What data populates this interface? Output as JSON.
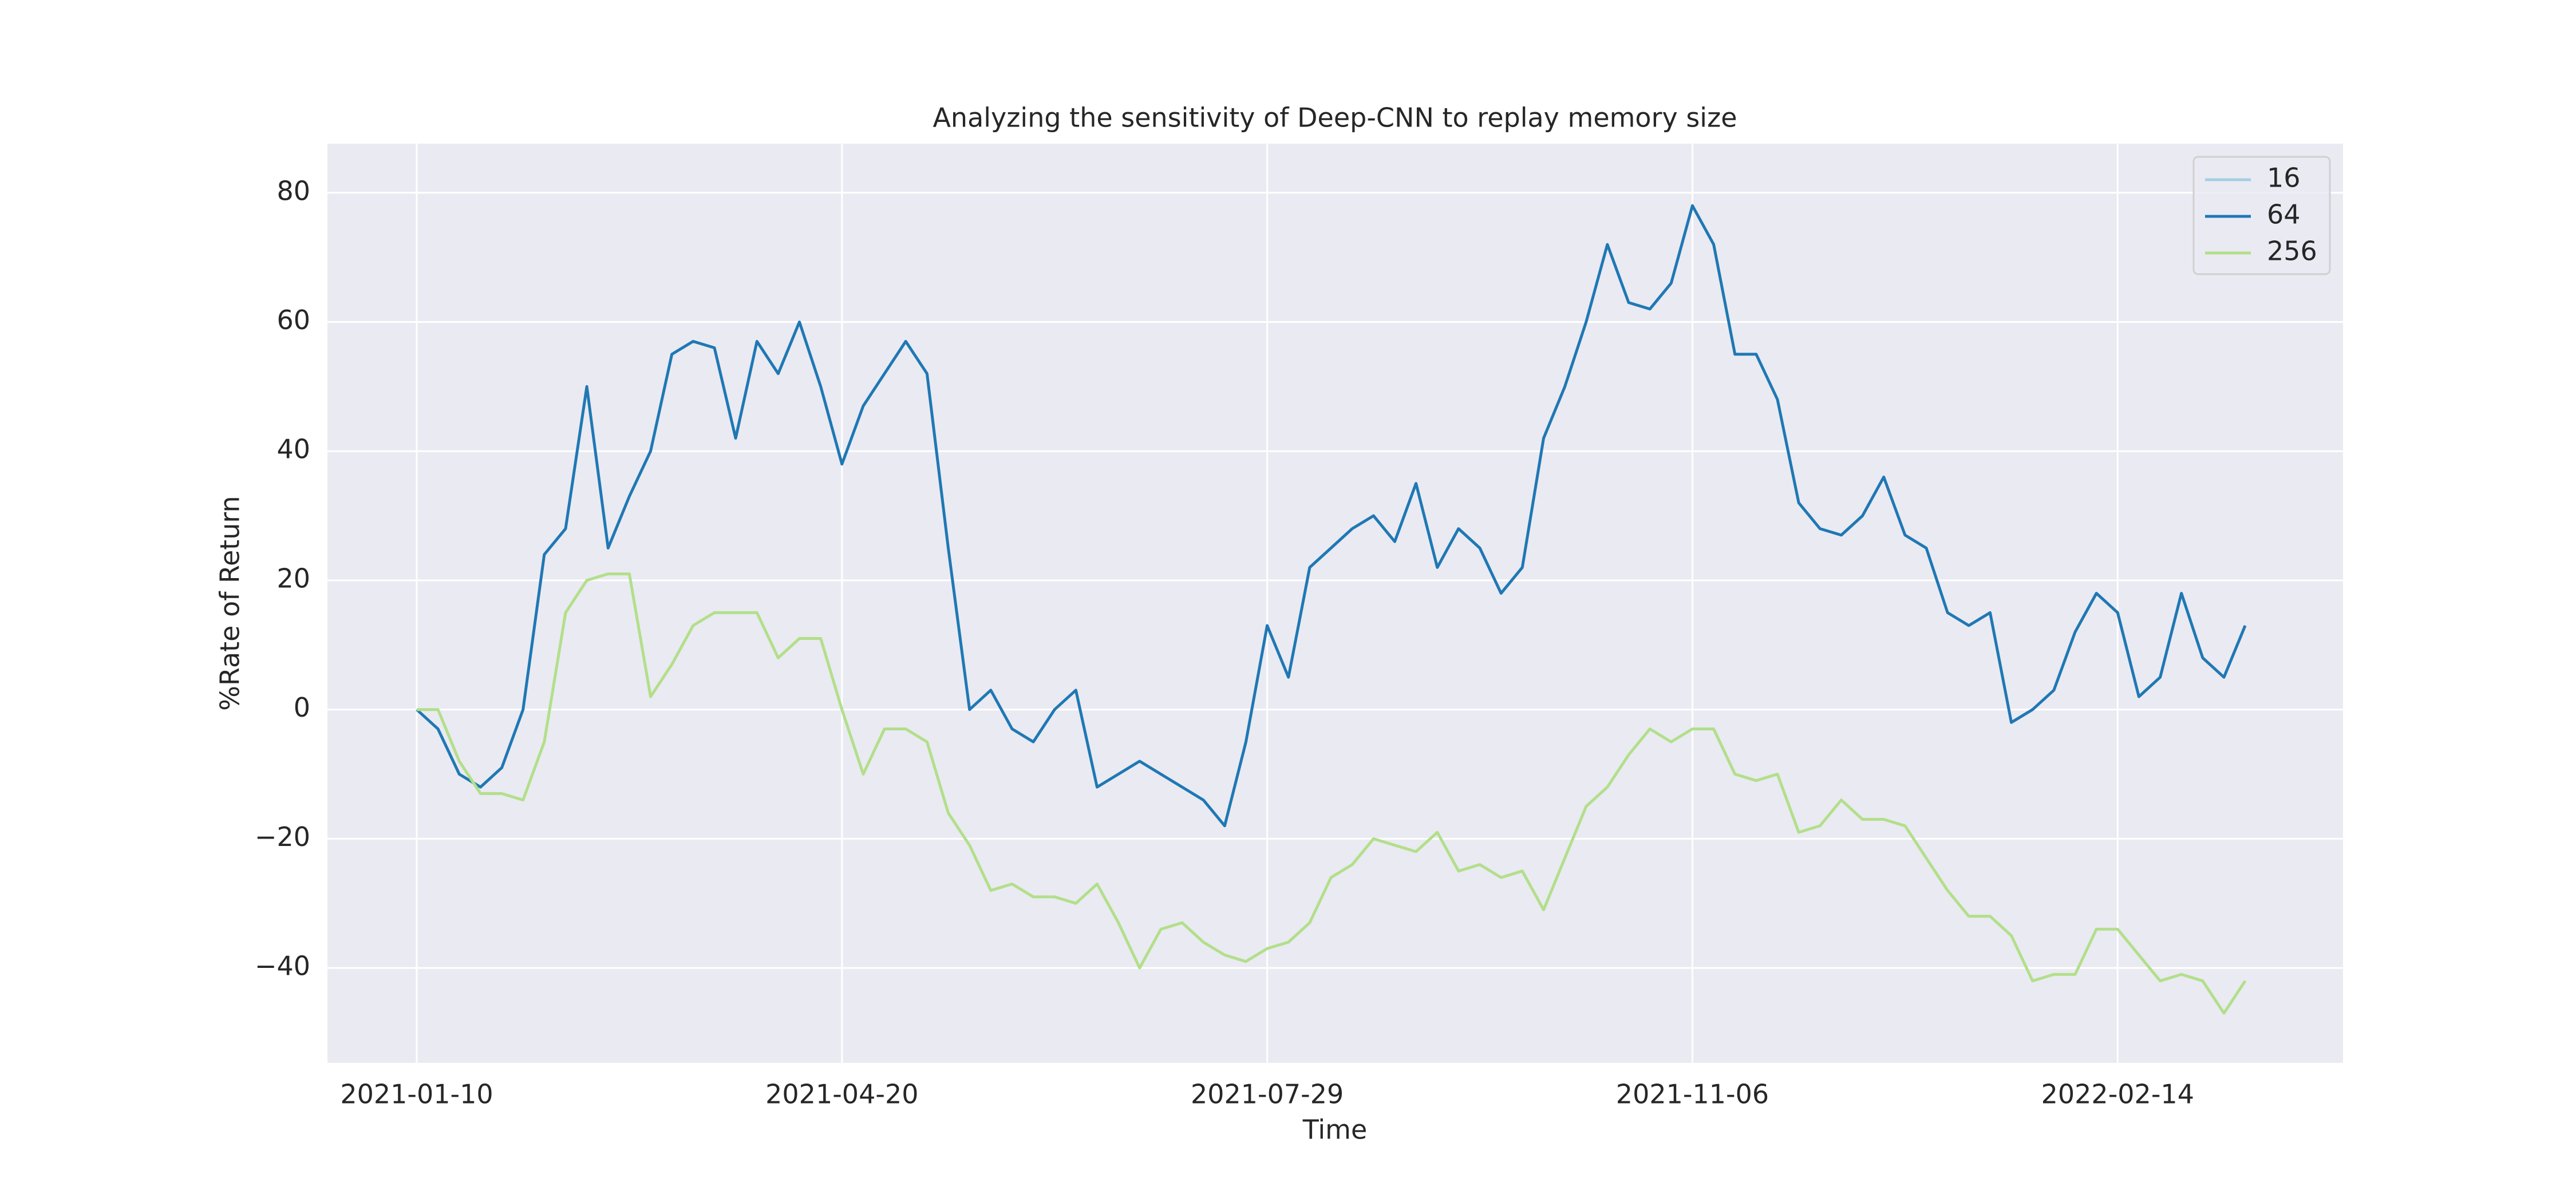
{
  "chart_data": {
    "type": "line",
    "title": "Analyzing the sensitivity of Deep-CNN to replay memory size",
    "x_label": "Time",
    "y_label": "%Rate of Return",
    "x": [
      "2021-01-10",
      "2021-01-15",
      "2021-01-20",
      "2021-01-25",
      "2021-01-30",
      "2021-02-04",
      "2021-02-09",
      "2021-02-14",
      "2021-02-19",
      "2021-02-24",
      "2021-03-01",
      "2021-03-06",
      "2021-03-11",
      "2021-03-16",
      "2021-03-21",
      "2021-03-26",
      "2021-03-31",
      "2021-04-05",
      "2021-04-10",
      "2021-04-15",
      "2021-04-20",
      "2021-04-25",
      "2021-04-30",
      "2021-05-05",
      "2021-05-10",
      "2021-05-15",
      "2021-05-20",
      "2021-05-25",
      "2021-05-30",
      "2021-06-04",
      "2021-06-09",
      "2021-06-14",
      "2021-06-19",
      "2021-06-24",
      "2021-06-29",
      "2021-07-04",
      "2021-07-09",
      "2021-07-14",
      "2021-07-19",
      "2021-07-24",
      "2021-07-29",
      "2021-08-03",
      "2021-08-08",
      "2021-08-13",
      "2021-08-18",
      "2021-08-23",
      "2021-08-28",
      "2021-09-02",
      "2021-09-07",
      "2021-09-12",
      "2021-09-17",
      "2021-09-22",
      "2021-09-27",
      "2021-10-02",
      "2021-10-07",
      "2021-10-12",
      "2021-10-17",
      "2021-10-22",
      "2021-10-27",
      "2021-11-01",
      "2021-11-06",
      "2021-11-11",
      "2021-11-16",
      "2021-11-21",
      "2021-11-26",
      "2021-12-01",
      "2021-12-06",
      "2021-12-11",
      "2021-12-16",
      "2021-12-21",
      "2021-12-26",
      "2021-12-31",
      "2022-01-05",
      "2022-01-10",
      "2022-01-15",
      "2022-01-20",
      "2022-01-25",
      "2022-01-30",
      "2022-02-04",
      "2022-02-09",
      "2022-02-14",
      "2022-02-19",
      "2022-02-24",
      "2022-03-01",
      "2022-03-06",
      "2022-03-11",
      "2022-03-16"
    ],
    "series": [
      {
        "name": "16",
        "color": "#a6cee3",
        "values": [
          null,
          null,
          null,
          null,
          null,
          null,
          null,
          null,
          null,
          null,
          null,
          null,
          null,
          null,
          null,
          null,
          null,
          null,
          null,
          null,
          null,
          null,
          null,
          null,
          null,
          null,
          null,
          null,
          null,
          null,
          null,
          null,
          null,
          null,
          null,
          null,
          null,
          null,
          null,
          null,
          null,
          null,
          null,
          null,
          null,
          null,
          null,
          null,
          null,
          null,
          null,
          null,
          null,
          null,
          null,
          null,
          null,
          null,
          null,
          null,
          null,
          null,
          null,
          null,
          null,
          null,
          null,
          null,
          null,
          null,
          null,
          null,
          null,
          null,
          null,
          null,
          null,
          null,
          null,
          null,
          null,
          null,
          null,
          null,
          null,
          null,
          null
        ]
      },
      {
        "name": "64",
        "color": "#1f78b4",
        "values": [
          0,
          -3,
          -10,
          -12,
          -9,
          0,
          24,
          28,
          50,
          25,
          33,
          40,
          55,
          57,
          56,
          42,
          57,
          52,
          60,
          50,
          38,
          47,
          52,
          57,
          52,
          25,
          0,
          3,
          -3,
          -5,
          0,
          3,
          -12,
          -10,
          -8,
          -10,
          -12,
          -14,
          -18,
          -5,
          13,
          5,
          22,
          25,
          28,
          30,
          26,
          35,
          22,
          28,
          25,
          18,
          22,
          42,
          50,
          60,
          72,
          63,
          62,
          66,
          78,
          72,
          55,
          55,
          48,
          32,
          28,
          27,
          30,
          36,
          27,
          25,
          15,
          13,
          15,
          -2,
          0,
          3,
          12,
          18,
          15,
          2,
          5,
          18,
          8,
          5,
          13
        ]
      },
      {
        "name": "256",
        "color": "#b2df8a",
        "values": [
          0,
          0,
          -8,
          -13,
          -13,
          -14,
          -5,
          15,
          20,
          21,
          21,
          2,
          7,
          13,
          15,
          15,
          15,
          8,
          11,
          11,
          0,
          -10,
          -3,
          -3,
          -5,
          -16,
          -21,
          -28,
          -27,
          -29,
          -29,
          -30,
          -27,
          -33,
          -40,
          -34,
          -33,
          -36,
          -38,
          -39,
          -37,
          -36,
          -33,
          -26,
          -24,
          -20,
          -21,
          -22,
          -19,
          -25,
          -24,
          -26,
          -25,
          -31,
          -23,
          -15,
          -12,
          -7,
          -3,
          -5,
          -3,
          -3,
          -10,
          -11,
          -10,
          -19,
          -18,
          -14,
          -17,
          -17,
          -18,
          -23,
          -28,
          -32,
          -32,
          -35,
          -42,
          -41,
          -41,
          -34,
          -34,
          -38,
          -42,
          -41,
          -42,
          -47,
          -42
        ]
      }
    ],
    "xlim": [
      "2020-12-20",
      "2022-04-08"
    ],
    "xticks": [
      "2021-01-10",
      "2021-04-20",
      "2021-07-29",
      "2021-11-06",
      "2022-02-14"
    ],
    "ylim": [
      -54.7,
      87.6
    ],
    "yticks": [
      {
        "value": -40,
        "label": "−40"
      },
      {
        "value": -20,
        "label": "−20"
      },
      0,
      20,
      40,
      60,
      80
    ],
    "grid": true,
    "legend": "upper right"
  }
}
